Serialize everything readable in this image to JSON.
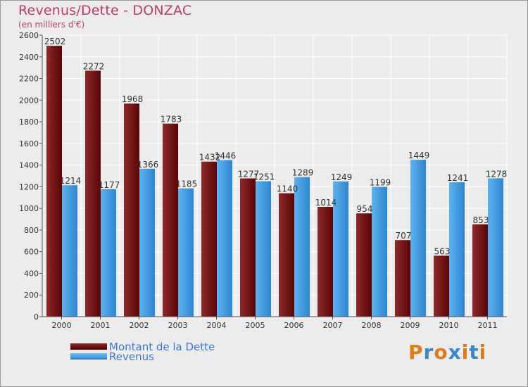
{
  "header": {
    "title": "Revenus/Dette - DONZAC",
    "subtitle": "(en milliers d'€)"
  },
  "chart_data": {
    "type": "bar",
    "categories": [
      "2000",
      "2001",
      "2002",
      "2003",
      "2004",
      "2005",
      "2006",
      "2007",
      "2008",
      "2009",
      "2010",
      "2011"
    ],
    "series": [
      {
        "name": "Montant de la Dette",
        "color": "#7a1515",
        "values": [
          2502,
          2272,
          1968,
          1783,
          1432,
          1277,
          1140,
          1014,
          954,
          707,
          563,
          853
        ]
      },
      {
        "name": "Revenus",
        "color": "#4aa3e6",
        "values": [
          1214,
          1177,
          1366,
          1185,
          1446,
          1251,
          1289,
          1249,
          1199,
          1449,
          1241,
          1278
        ]
      }
    ],
    "ylim": [
      0,
      2600
    ],
    "yticks": [
      0,
      200,
      400,
      600,
      800,
      1000,
      1200,
      1400,
      1600,
      1800,
      2000,
      2200,
      2400,
      2600
    ],
    "grid": true,
    "legend_position": "bottom-left"
  },
  "logo": {
    "text": "Proxiti",
    "colors": [
      "#e07b1a",
      "#3a86c8",
      "#e07b1a",
      "#3a86c8",
      "#e07b1a",
      "#3a86c8",
      "#e07b1a"
    ]
  }
}
